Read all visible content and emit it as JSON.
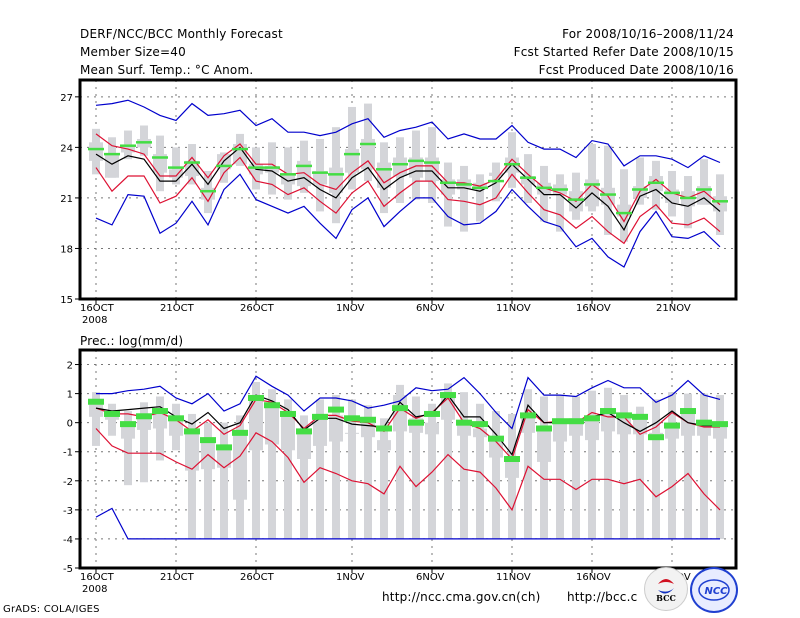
{
  "header": {
    "title": "DERF/NCC/BCC Monthly Forecast",
    "member_size": "Member Size=40",
    "variable_top": "Mean Surf. Temp.: °C Anom.",
    "period": "For 2008/10/16–2008/11/24",
    "start_refer": "Fcst Started Refer Date 2008/10/15",
    "produced": "Fcst Produced Date 2008/10/16"
  },
  "footer": {
    "grads": "GrADS: COLA/IGES",
    "url_ncc": "http://ncc.cma.gov.cn(ch)",
    "url_bcc": "http://bcc.c",
    "logo_bcc": "BCC",
    "logo_ncc": "NCC"
  },
  "colors": {
    "max_min": "#0000cc",
    "percentile": "#dd1133",
    "mean": "#000000",
    "marker": "#44dd44",
    "box": "#d4d5d9"
  },
  "chart_data": [
    {
      "type": "line",
      "title": "Mean Surf. Temp.: °C Anom.",
      "xlabel": "",
      "ylabel": "",
      "x_tick_labels": [
        "16OCT",
        "21OCT",
        "26OCT",
        "1NOV",
        "6NOV",
        "11NOV",
        "16NOV",
        "21NOV"
      ],
      "x_tick_days": [
        0,
        5,
        10,
        16,
        21,
        26,
        31,
        36
      ],
      "x_year_label": "2008",
      "ylim": [
        15,
        28
      ],
      "yticks": [
        15,
        18,
        21,
        24,
        27
      ],
      "grid": true,
      "days": 40,
      "series": [
        {
          "name": "max",
          "values": [
            26.5,
            26.6,
            26.8,
            26.4,
            25.9,
            25.6,
            26.6,
            25.9,
            26.0,
            26.2,
            25.3,
            25.7,
            24.9,
            24.9,
            24.7,
            24.9,
            25.4,
            25.7,
            24.6,
            25.0,
            25.2,
            25.5,
            24.5,
            24.8,
            24.5,
            24.5,
            25.3,
            24.3,
            23.9,
            23.9,
            23.4,
            24.4,
            24.2,
            22.9,
            23.5,
            23.5,
            23.3,
            22.8,
            23.5,
            23.1
          ]
        },
        {
          "name": "upper",
          "values": [
            24.8,
            24.1,
            23.9,
            23.6,
            22.3,
            22.3,
            23.4,
            22.2,
            23.5,
            24.2,
            23.0,
            23.0,
            22.4,
            22.5,
            21.8,
            21.5,
            22.5,
            23.2,
            21.9,
            22.5,
            22.9,
            22.9,
            21.9,
            21.9,
            21.7,
            22.1,
            23.3,
            22.4,
            21.6,
            21.3,
            20.8,
            21.8,
            21.1,
            19.6,
            21.4,
            22.1,
            21.3,
            21.0,
            21.4,
            20.6
          ]
        },
        {
          "name": "mean",
          "values": [
            23.6,
            23.0,
            23.5,
            23.3,
            22.0,
            22.0,
            23.0,
            21.8,
            23.2,
            24.0,
            22.7,
            22.6,
            22.0,
            22.2,
            21.5,
            21.0,
            22.2,
            22.8,
            21.5,
            22.2,
            22.6,
            22.6,
            21.6,
            21.6,
            21.4,
            21.9,
            23.0,
            22.1,
            21.2,
            21.2,
            20.4,
            21.3,
            20.5,
            19.1,
            21.1,
            21.5,
            20.7,
            20.5,
            21.0,
            20.2
          ]
        },
        {
          "name": "lower",
          "values": [
            22.8,
            21.4,
            22.3,
            22.3,
            20.7,
            21.1,
            22.2,
            20.8,
            22.5,
            23.4,
            22.0,
            21.8,
            21.2,
            21.6,
            20.8,
            20.1,
            21.3,
            22.0,
            20.5,
            21.3,
            22.0,
            22.0,
            20.9,
            20.8,
            20.6,
            21.0,
            22.4,
            21.3,
            20.3,
            20.0,
            19.2,
            19.9,
            19.0,
            18.3,
            19.9,
            20.6,
            19.5,
            19.4,
            19.8,
            19.0
          ]
        },
        {
          "name": "min",
          "values": [
            19.8,
            19.4,
            21.2,
            21.1,
            18.9,
            19.5,
            20.8,
            19.4,
            21.5,
            22.4,
            20.9,
            20.5,
            20.1,
            20.5,
            19.5,
            18.6,
            20.3,
            21.0,
            19.3,
            20.2,
            21.0,
            21.0,
            19.9,
            19.4,
            19.5,
            20.2,
            21.5,
            20.5,
            19.6,
            19.3,
            18.1,
            18.6,
            17.5,
            16.9,
            19.0,
            20.2,
            18.7,
            18.6,
            19.0,
            18.1
          ]
        }
      ],
      "boxes": {
        "whisker_low": [
          22.4,
          22.2,
          23.3,
          23.5,
          21.4,
          21.8,
          21.8,
          20.1,
          21.9,
          22.9,
          21.5,
          21.2,
          20.9,
          21.3,
          20.2,
          19.5,
          21.5,
          22.0,
          20.1,
          20.7,
          20.9,
          20.7,
          19.3,
          19.0,
          19.6,
          20.8,
          21.6,
          20.7,
          19.6,
          19.0,
          19.7,
          20.2,
          18.8,
          18.4,
          20.6,
          20.3,
          19.9,
          19.2,
          20.6,
          18.8
        ],
        "box_low": [
          23.2,
          22.2,
          23.7,
          24.0,
          22.5,
          22.2,
          22.3,
          20.9,
          22.7,
          23.0,
          22.4,
          22.5,
          21.8,
          21.7,
          21.8,
          21.3,
          22.5,
          22.7,
          21.6,
          22.3,
          22.2,
          22.0,
          21.2,
          21.5,
          21.6,
          22.3,
          22.5,
          21.8,
          21.2,
          21.2,
          20.2,
          20.5,
          20.6,
          19.9,
          21.0,
          21.4,
          20.7,
          20.5,
          20.6,
          20.2
        ],
        "box_high": [
          24.3,
          23.6,
          24.1,
          24.5,
          23.6,
          22.7,
          23.2,
          21.6,
          23.6,
          24.2,
          23.0,
          22.9,
          22.4,
          23.2,
          22.6,
          22.8,
          23.9,
          24.5,
          23.1,
          23.4,
          23.4,
          23.4,
          22.1,
          22.1,
          21.9,
          22.5,
          23.4,
          22.3,
          21.9,
          21.8,
          21.4,
          22.1,
          21.6,
          20.6,
          21.7,
          22.3,
          21.5,
          21.4,
          21.7,
          21.1
        ],
        "whisker_high": [
          25.1,
          24.6,
          25.0,
          25.3,
          24.7,
          24.0,
          24.2,
          22.6,
          23.7,
          24.8,
          24.0,
          24.3,
          24.0,
          24.4,
          24.5,
          25.2,
          26.4,
          26.6,
          24.3,
          24.6,
          25.0,
          25.2,
          23.1,
          22.9,
          22.4,
          23.1,
          24.9,
          23.6,
          22.9,
          22.4,
          22.5,
          24.2,
          24.1,
          22.7,
          23.4,
          23.2,
          22.6,
          22.3,
          23.3,
          22.4
        ],
        "marker": [
          23.9,
          23.6,
          24.1,
          24.3,
          23.4,
          22.8,
          23.1,
          21.4,
          22.9,
          23.9,
          22.8,
          22.8,
          22.4,
          22.9,
          22.5,
          22.4,
          23.6,
          24.2,
          22.7,
          23.0,
          23.2,
          23.1,
          21.9,
          21.8,
          21.6,
          22.0,
          23.0,
          22.2,
          21.6,
          21.5,
          20.9,
          21.8,
          21.2,
          20.1,
          21.5,
          21.9,
          21.3,
          21.0,
          21.5,
          20.8
        ]
      }
    },
    {
      "type": "line",
      "title": "Prec.: log(mm/d)",
      "xlabel": "",
      "ylabel": "",
      "x_tick_labels": [
        "16OCT",
        "21OCT",
        "26OCT",
        "1NOV",
        "6NOV",
        "11NOV",
        "16NOV",
        "21NOV"
      ],
      "x_tick_days": [
        0,
        5,
        10,
        16,
        21,
        26,
        31,
        36
      ],
      "x_year_label": "2008",
      "ylim": [
        -5,
        2.5
      ],
      "yticks": [
        -5,
        -4,
        -3,
        -2,
        -1,
        0,
        1,
        2
      ],
      "grid": true,
      "days": 40,
      "series": [
        {
          "name": "max",
          "values": [
            1.0,
            1.0,
            1.1,
            1.15,
            1.25,
            0.85,
            0.65,
            1.0,
            0.4,
            0.65,
            1.6,
            1.25,
            0.95,
            0.4,
            0.85,
            0.85,
            0.75,
            0.5,
            0.6,
            0.75,
            1.2,
            1.1,
            1.15,
            1.55,
            1.0,
            0.35,
            -0.2,
            1.55,
            0.95,
            0.95,
            0.9,
            1.2,
            1.45,
            1.2,
            1.2,
            0.7,
            0.95,
            1.45,
            0.95,
            0.8
          ]
        },
        {
          "name": "upper",
          "values": [
            0.5,
            0.3,
            0.3,
            0.2,
            0.35,
            0.1,
            -0.3,
            0.1,
            -0.4,
            -0.1,
            0.8,
            0.7,
            0.35,
            -0.2,
            0.25,
            0.25,
            0.05,
            0.0,
            -0.3,
            0.5,
            0.15,
            0.35,
            0.85,
            0.0,
            -0.2,
            -0.65,
            -1.25,
            0.45,
            0.0,
            0.05,
            0.0,
            0.35,
            0.2,
            0.2,
            -0.4,
            -0.15,
            0.35,
            0.0,
            -0.15,
            -0.15
          ]
        },
        {
          "name": "mean",
          "values": [
            0.5,
            0.4,
            0.45,
            0.5,
            0.55,
            0.2,
            -0.05,
            0.35,
            -0.2,
            0.0,
            0.95,
            0.75,
            0.45,
            -0.25,
            0.15,
            0.15,
            -0.05,
            -0.1,
            -0.15,
            0.7,
            0.2,
            0.3,
            0.95,
            0.2,
            0.2,
            -0.4,
            -1.1,
            0.6,
            0.0,
            0.0,
            0.0,
            0.2,
            0.35,
            0.0,
            -0.3,
            0.0,
            0.4,
            0.0,
            -0.1,
            -0.1
          ]
        },
        {
          "name": "lower",
          "values": [
            -0.2,
            -0.8,
            -1.05,
            -1.05,
            -1.05,
            -1.35,
            -1.6,
            -1.1,
            -1.55,
            -1.15,
            -0.35,
            -0.65,
            -1.2,
            -2.05,
            -1.55,
            -1.75,
            -2.0,
            -2.1,
            -2.45,
            -1.5,
            -2.2,
            -1.7,
            -1.1,
            -1.6,
            -1.7,
            -2.25,
            -3.0,
            -1.5,
            -1.95,
            -1.95,
            -2.3,
            -1.95,
            -1.95,
            -2.1,
            -1.95,
            -2.55,
            -2.2,
            -1.75,
            -2.45,
            -3.0
          ]
        },
        {
          "name": "min",
          "values": [
            -3.25,
            -2.95,
            -4.0,
            -4.0,
            -4.0,
            -4.0,
            -4.0,
            -4.0,
            -4.0,
            -4.0,
            -4.0,
            -4.0,
            -4.0,
            -4.0,
            -4.0,
            -4.0,
            -4.0,
            -4.0,
            -4.0,
            -4.0,
            -4.0,
            -4.0,
            -4.0,
            -4.0,
            -4.0,
            -4.0,
            -4.0,
            -4.0,
            -4.0,
            -4.0,
            -4.0,
            -4.0,
            -4.0,
            -4.0,
            -4.0,
            -4.0,
            -4.0,
            -4.0,
            -4.0,
            -4.0
          ]
        }
      ],
      "boxes": {
        "whisker_low": [
          -0.8,
          -0.45,
          -2.15,
          -2.05,
          -1.3,
          -0.95,
          -4.0,
          -4.0,
          -4.0,
          -4.0,
          -4.0,
          -4.0,
          -4.0,
          -4.0,
          -4.0,
          -4.0,
          -4.0,
          -4.0,
          -4.0,
          -4.0,
          -4.0,
          -4.0,
          -4.0,
          -4.0,
          -4.0,
          -4.0,
          -4.0,
          -4.0,
          -4.0,
          -4.0,
          -4.0,
          -4.0,
          -4.0,
          -4.0,
          -4.0,
          -4.0,
          -4.0,
          -4.0,
          -4.0,
          -4.0
        ],
        "box_low": [
          0.2,
          0.1,
          -0.55,
          -0.25,
          -0.2,
          -0.45,
          -1.65,
          -1.6,
          -1.55,
          -2.65,
          -0.95,
          -0.75,
          -0.95,
          -1.25,
          -0.8,
          -0.65,
          -0.35,
          -0.5,
          -0.95,
          -0.3,
          -0.35,
          -0.4,
          0.1,
          -0.45,
          -0.5,
          -1.2,
          -1.9,
          -0.35,
          -1.35,
          -0.65,
          -0.45,
          -0.6,
          -0.3,
          -0.4,
          -0.4,
          -0.5,
          -0.55,
          -0.45,
          -0.45,
          -0.55
        ],
        "box_high": [
          0.75,
          0.3,
          -0.05,
          0.25,
          0.45,
          0.2,
          -0.3,
          -0.6,
          -0.85,
          -0.3,
          0.85,
          0.6,
          0.3,
          -0.3,
          0.2,
          0.25,
          -0.35,
          0.1,
          -0.6,
          0.95,
          0.15,
          0.0,
          0.95,
          0.05,
          -0.2,
          -0.6,
          -1.25,
          0.25,
          -0.1,
          0.1,
          0.15,
          0.25,
          0.45,
          0.25,
          0.2,
          -0.35,
          0.0,
          0.4,
          0.0,
          0.0
        ],
        "whisker_high": [
          1.05,
          0.65,
          0.4,
          0.7,
          0.9,
          0.65,
          0.3,
          0.0,
          0.0,
          0.25,
          1.4,
          1.15,
          0.8,
          0.25,
          0.8,
          0.95,
          0.8,
          0.6,
          0.15,
          1.3,
          0.9,
          0.65,
          1.35,
          1.05,
          0.65,
          0.4,
          0.3,
          1.15,
          0.9,
          0.95,
          0.9,
          1.1,
          1.2,
          0.95,
          0.55,
          0.8,
          1.05,
          1.0,
          1.0,
          0.95
        ],
        "marker": [
          0.72,
          0.3,
          -0.05,
          0.22,
          0.4,
          0.15,
          -0.3,
          -0.6,
          -0.85,
          -0.35,
          0.85,
          0.6,
          0.3,
          -0.3,
          0.2,
          0.45,
          0.15,
          0.1,
          -0.2,
          0.5,
          0.0,
          0.3,
          0.95,
          0.0,
          -0.05,
          -0.55,
          -1.25,
          0.25,
          -0.2,
          0.05,
          0.05,
          0.15,
          0.4,
          0.25,
          0.2,
          -0.5,
          -0.1,
          0.4,
          0.0,
          -0.05
        ]
      }
    }
  ]
}
